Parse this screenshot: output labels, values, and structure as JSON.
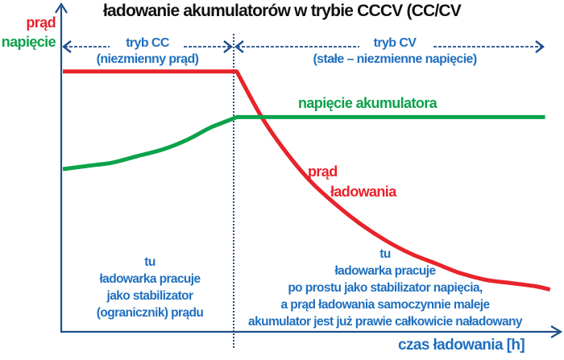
{
  "title": "ładowanie akumulatorów w trybie CCCV (CC/CV",
  "y_axis": {
    "label_current": "prąd",
    "label_voltage": "napięcie"
  },
  "x_axis": {
    "label": "czas ładowania [h]"
  },
  "modes": {
    "cc": {
      "name": "tryb CC",
      "desc": "(niezmienny prąd)"
    },
    "cv": {
      "name": "tryb CV",
      "desc": "(stałe – niezmienne napięcie)"
    }
  },
  "curve_labels": {
    "voltage": "napięcie akumulatora",
    "current_line1": "prąd",
    "current_line2": "ładowania"
  },
  "notes": {
    "cc": [
      "tu",
      "ładowarka pracuje",
      "jako stabilizator",
      "(ogranicznik) prądu"
    ],
    "cv": [
      "tu",
      "ładowarka pracuje",
      "po prostu jako stabilizator napięcia,",
      "a prąd ładowania samoczynnie maleje",
      "akumulator jest już prawie całkowicie naładowany"
    ]
  },
  "colors": {
    "current": "#e8232a",
    "voltage": "#0ba24a",
    "axis": "#1d4f8c",
    "annotation": "#1f6fbf",
    "title": "#111111"
  },
  "chart_data": {
    "type": "line",
    "title": "ładowanie akumulatorów w trybie CCCV (CC/CV",
    "xlabel": "czas ładowania [h]",
    "ylabel": "prąd / napięcie",
    "units": "relative (0 = axis origin, 1 = top of plot; time 0..1, CC→CV switch at 0.35)",
    "xlim": [
      0,
      1
    ],
    "ylim": [
      0,
      1
    ],
    "mode_switch_x": 0.35,
    "series": [
      {
        "name": "prąd ładowania",
        "color": "#e8232a",
        "x": [
          0,
          0.35,
          0.4,
          0.45,
          0.5,
          0.55,
          0.6,
          0.65,
          0.7,
          0.75,
          0.8,
          0.85,
          0.9,
          0.95,
          0.98
        ],
        "y": [
          0.8,
          0.8,
          0.66,
          0.55,
          0.46,
          0.39,
          0.33,
          0.28,
          0.24,
          0.21,
          0.18,
          0.16,
          0.15,
          0.14,
          0.13
        ]
      },
      {
        "name": "napięcie akumulatora",
        "color": "#0ba24a",
        "x": [
          0,
          0.05,
          0.1,
          0.15,
          0.2,
          0.25,
          0.3,
          0.35,
          0.5,
          0.7,
          0.9,
          0.97
        ],
        "y": [
          0.5,
          0.51,
          0.52,
          0.54,
          0.56,
          0.59,
          0.63,
          0.66,
          0.66,
          0.66,
          0.66,
          0.66
        ]
      }
    ],
    "grid": false,
    "legend": "none"
  }
}
